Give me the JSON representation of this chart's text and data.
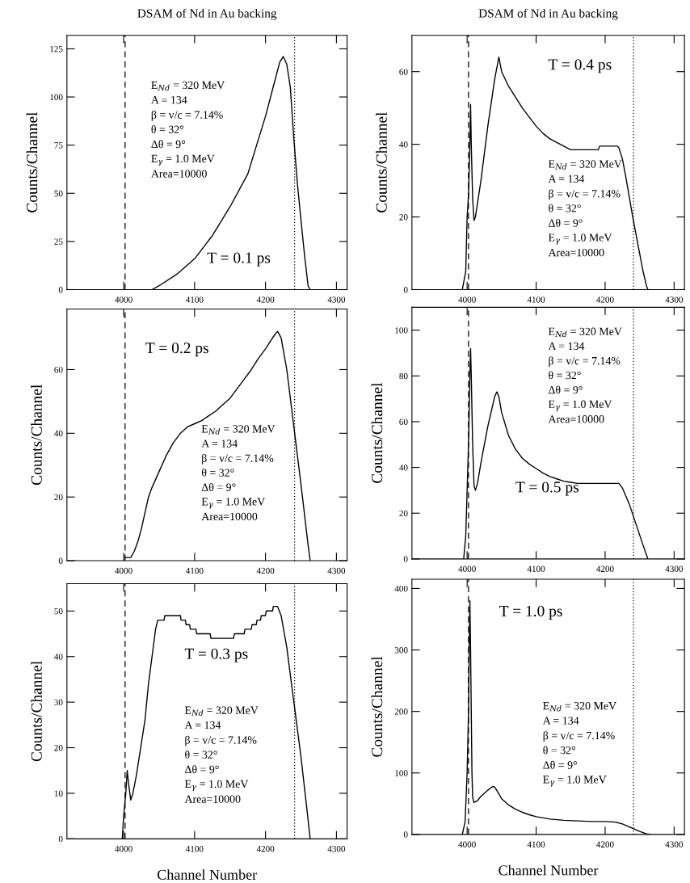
{
  "chart_data": [
    {
      "type": "line",
      "title": "DSAM of Nd in Au backing",
      "ylabel": "Counts/Channel",
      "xlim": [
        3920,
        4315
      ],
      "xticks": [
        4000,
        4100,
        4200,
        4300
      ],
      "ylim": [
        0,
        132
      ],
      "yticks": [
        0,
        25,
        50,
        75,
        100,
        125
      ],
      "grid": false,
      "legend": false,
      "series": [
        {
          "color": "#000000",
          "x": [
            4040,
            4050,
            4075,
            4100,
            4125,
            4150,
            4175,
            4200,
            4210,
            4220,
            4225,
            4230,
            4235,
            4240,
            4245,
            4250,
            4255,
            4260,
            4263
          ],
          "values": [
            0,
            2,
            8,
            16,
            28,
            43,
            60,
            90,
            104,
            118,
            121,
            117,
            105,
            78,
            55,
            36,
            18,
            2,
            0
          ]
        }
      ],
      "ref_lines": [
        {
          "axis": "x",
          "value": 4002,
          "line_style": "dashed",
          "color": "#000000"
        },
        {
          "axis": "x",
          "value": 4241,
          "line_style": "dotted",
          "color": "#000000"
        }
      ],
      "annotations": [
        "T = 0.1 ps",
        "E$_{Nd}$ = 320 MeV",
        "A = 134",
        "β = v/c = 7.14%",
        "θ = 32°",
        "Δθ = 9°",
        "E$_{γ}$ = 1.0 MeV",
        "Area=10000"
      ]
    },
    {
      "type": "line",
      "title": "DSAM of Nd in Au backing",
      "ylabel": "Counts/Channel",
      "xlim": [
        3920,
        4315
      ],
      "xticks": [
        4000,
        4100,
        4200,
        4300
      ],
      "ylim": [
        0,
        70
      ],
      "yticks": [
        0,
        20,
        40,
        60
      ],
      "grid": false,
      "legend": false,
      "series": [
        {
          "color": "#000000",
          "x": [
            3993,
            3998,
            4000,
            4002,
            4004,
            4005,
            4006,
            4008,
            4010,
            4012,
            4020,
            4030,
            4040,
            4046,
            4050,
            4060,
            4070,
            4080,
            4090,
            4100,
            4110,
            4120,
            4130,
            4140,
            4150,
            4160,
            4190,
            4192,
            4218,
            4220,
            4225,
            4230,
            4240,
            4250,
            4255,
            4260,
            4262
          ],
          "values": [
            0,
            5,
            20,
            26,
            40,
            51,
            40,
            25,
            19,
            20,
            30,
            45,
            58,
            64,
            60,
            56,
            53,
            50,
            47.5,
            45,
            43,
            41.5,
            40.5,
            39.5,
            38.5,
            38.5,
            38.5,
            39.5,
            39.5,
            39,
            36,
            31,
            20,
            10,
            5,
            1,
            0
          ]
        }
      ],
      "ref_lines": [
        {
          "axis": "x",
          "value": 4002,
          "line_style": "dashed",
          "color": "#000000"
        },
        {
          "axis": "x",
          "value": 4241,
          "line_style": "dotted",
          "color": "#000000"
        }
      ],
      "annotations": [
        "T = 0.4 ps",
        "E$_{Nd}$ = 320 MeV",
        "A = 134",
        "β = v/c = 7.14%",
        "θ = 32°",
        "Δθ = 9°",
        "E$_{γ}$ = 1.0 MeV",
        "Area=10000"
      ]
    },
    {
      "type": "line",
      "ylabel": "Counts/Channel",
      "xlim": [
        3920,
        4315
      ],
      "xticks": [
        4000,
        4100,
        4200,
        4300
      ],
      "ylim": [
        0,
        79
      ],
      "yticks": [
        0,
        20,
        40,
        60
      ],
      "grid": false,
      "legend": false,
      "series": [
        {
          "color": "#000000",
          "x": [
            4002,
            4010,
            4015,
            4020,
            4025,
            4030,
            4035,
            4040,
            4050,
            4060,
            4070,
            4080,
            4090,
            4100,
            4110,
            4120,
            4130,
            4140,
            4150,
            4160,
            4170,
            4180,
            4190,
            4200,
            4210,
            4217,
            4222,
            4230,
            4240,
            4250,
            4260,
            4263
          ],
          "values": [
            1,
            1,
            3,
            6,
            10,
            15,
            20,
            23,
            28,
            33,
            37,
            40,
            42,
            43,
            44,
            45.5,
            47,
            49,
            51,
            54,
            57,
            60,
            63.5,
            66.5,
            70,
            72,
            70,
            60,
            42,
            24,
            5,
            0
          ]
        }
      ],
      "ref_lines": [
        {
          "axis": "x",
          "value": 4002,
          "line_style": "dashed",
          "color": "#000000"
        },
        {
          "axis": "x",
          "value": 4241,
          "line_style": "dotted",
          "color": "#000000"
        }
      ],
      "annotations": [
        "T = 0.2 ps",
        "E$_{Nd}$ = 320 MeV",
        "A = 134",
        "β = v/c = 7.14%",
        "θ = 32°",
        "Δθ = 9°",
        "E$_{γ}$ = 1.0 MeV",
        "Area=10000"
      ]
    },
    {
      "type": "line",
      "ylabel": "Counts/Channel",
      "xlim": [
        3920,
        4315
      ],
      "xticks": [
        4000,
        4100,
        4200,
        4300
      ],
      "ylim": [
        0,
        110
      ],
      "yticks": [
        0,
        20,
        40,
        60,
        80,
        100
      ],
      "grid": false,
      "legend": false,
      "series": [
        {
          "color": "#000000",
          "x": [
            3995,
            3998,
            4000,
            4002,
            4004,
            4005,
            4006,
            4008,
            4010,
            4012,
            4015,
            4020,
            4030,
            4040,
            4043,
            4046,
            4050,
            4060,
            4070,
            4080,
            4090,
            4100,
            4110,
            4120,
            4130,
            4140,
            4150,
            4160,
            4220,
            4225,
            4235,
            4245,
            4255,
            4262
          ],
          "values": [
            0,
            10,
            30,
            50,
            80,
            92,
            80,
            50,
            32,
            30,
            33,
            42,
            58,
            71,
            73,
            71,
            64,
            54,
            48,
            44,
            41.5,
            39.5,
            37.5,
            36,
            35,
            34,
            33.5,
            33,
            33,
            31,
            24,
            15,
            6,
            0
          ]
        }
      ],
      "ref_lines": [
        {
          "axis": "x",
          "value": 4002,
          "line_style": "dashed",
          "color": "#000000"
        },
        {
          "axis": "x",
          "value": 4241,
          "line_style": "dotted",
          "color": "#000000"
        }
      ],
      "annotations": [
        "T = 0.5 ps",
        "E$_{Nd}$ = 320 MeV",
        "A = 134",
        "β = v/c = 7.14%",
        "θ = 32°",
        "Δθ = 9°",
        "E$_{γ}$ = 1.0 MeV",
        "Area=10000"
      ]
    },
    {
      "type": "line",
      "xlabel": "Channel Number",
      "ylabel": "Counts/Channel",
      "xlim": [
        3920,
        4315
      ],
      "xticks": [
        4000,
        4100,
        4200,
        4300
      ],
      "ylim": [
        0,
        56
      ],
      "yticks": [
        0,
        10,
        20,
        30,
        40,
        50
      ],
      "grid": false,
      "legend": false,
      "series": [
        {
          "color": "#000000",
          "x": [
            3998,
            4000,
            4003,
            4005,
            4007,
            4010,
            4013,
            4018,
            4025,
            4030,
            4035,
            4040,
            4045,
            4048,
            4057,
            4058,
            4080,
            4081,
            4087,
            4088,
            4093,
            4094,
            4102,
            4103,
            4122,
            4123,
            4155,
            4156,
            4170,
            4171,
            4180,
            4181,
            4187,
            4188,
            4193,
            4194,
            4200,
            4201,
            4210,
            4211,
            4217,
            4222,
            4230,
            4235,
            4240,
            4250,
            4258,
            4263
          ],
          "values": [
            0,
            5,
            10,
            15,
            12,
            8.5,
            10,
            14,
            21,
            26,
            34,
            40,
            46,
            48,
            48,
            49,
            49,
            48,
            48,
            47,
            47,
            46,
            46,
            45,
            45,
            44,
            44,
            45,
            45,
            46,
            46,
            47,
            47,
            48,
            48,
            49,
            49,
            50,
            50,
            51,
            51,
            49,
            42,
            36,
            30,
            18,
            7,
            0
          ]
        }
      ],
      "ref_lines": [
        {
          "axis": "x",
          "value": 4002,
          "line_style": "dashed",
          "color": "#000000"
        },
        {
          "axis": "x",
          "value": 4241,
          "line_style": "dotted",
          "color": "#000000"
        }
      ],
      "annotations": [
        "T = 0.3 ps",
        "E$_{Nd}$ = 320 MeV",
        "A = 134",
        "β = v/c = 7.14%",
        "θ = 32°",
        "Δθ = 9°",
        "E$_{γ}$ = 1.0 MeV",
        "Area=10000"
      ]
    },
    {
      "type": "line",
      "xlabel": "Channel Number",
      "ylabel": "Counts/Channel",
      "xlim": [
        3920,
        4315
      ],
      "xticks": [
        4000,
        4100,
        4200,
        4300
      ],
      "ylim": [
        0,
        415
      ],
      "yticks": [
        0,
        100,
        200,
        300,
        400
      ],
      "grid": false,
      "legend": false,
      "series": [
        {
          "color": "#000000",
          "x": [
            3993,
            3997,
            4000,
            4002,
            4003,
            4004,
            4005,
            4006,
            4007,
            4008,
            4010,
            4015,
            4020,
            4030,
            4037,
            4040,
            4045,
            4050,
            4060,
            4070,
            4080,
            4090,
            4100,
            4120,
            4140,
            4160,
            4180,
            4200,
            4215,
            4225,
            4240,
            4250,
            4260,
            4265
          ],
          "values": [
            0,
            20,
            100,
            200,
            300,
            380,
            300,
            200,
            100,
            60,
            52,
            55,
            62,
            72,
            78,
            77,
            68,
            58,
            48,
            41,
            36,
            32,
            29,
            25,
            23,
            22,
            21,
            21,
            20,
            17,
            10,
            5,
            1,
            0
          ]
        }
      ],
      "ref_lines": [
        {
          "axis": "x",
          "value": 4002,
          "line_style": "dashed",
          "color": "#000000"
        },
        {
          "axis": "x",
          "value": 4241,
          "line_style": "dotted",
          "color": "#000000"
        }
      ],
      "annotations": [
        "T = 1.0 ps",
        "E$_{Nd}$ = 320 MeV",
        "A = 134",
        "β = v/c = 7.14%",
        "θ = 32°",
        "Δθ = 9°",
        "E$_{γ}$ = 1.0 MeV"
      ]
    }
  ]
}
